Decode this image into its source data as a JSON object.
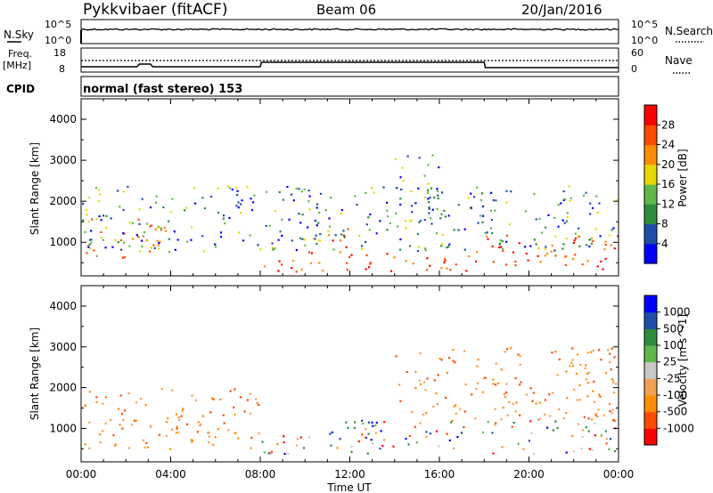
{
  "header": {
    "station": "Pykkvibaer (fitACF)",
    "beam": "Beam 06",
    "date": "20/Jan/2016"
  },
  "status_panels": {
    "nsky_label": "N.Sky",
    "nsky_ticks": [
      "10^5",
      "10^0"
    ],
    "nsearch_label": "N.Search",
    "nsearch_ticks": [
      "10^5",
      "10^0"
    ],
    "freq_label_1": "Freq.",
    "freq_label_2": "[MHz]",
    "freq_ticks": [
      "18",
      "8"
    ],
    "nave_label": "Nave",
    "nave_ticks": [
      "60",
      "0"
    ],
    "cpid_label": "CPID",
    "cpid_text": "normal (fast stereo) 153"
  },
  "chart_data": [
    {
      "type": "heatmap",
      "name": "power",
      "ylabel": "Slant Range [km]",
      "ylim": [
        180,
        4500
      ],
      "yticks": [
        "1000",
        "2000",
        "3000",
        "4000"
      ],
      "xlim_hours": [
        0,
        24
      ],
      "colorbar_label": "Power [dB]",
      "colorbar_ticks": [
        "28",
        "24",
        "20",
        "16",
        "12",
        "8",
        "4"
      ],
      "colors": [
        "#0000ff",
        "#1f4ea8",
        "#2c8c3c",
        "#5fb84a",
        "#e8d800",
        "#ff8c00",
        "#ff4a00",
        "#ff0000"
      ],
      "echo_regions": [
        {
          "x": [
            0,
            4.3
          ],
          "y": [
            600,
            1600
          ],
          "level": "high"
        },
        {
          "x": [
            3,
            4.3
          ],
          "y": [
            900,
            1500
          ],
          "level": "very-high"
        },
        {
          "x": [
            8,
            18
          ],
          "y": [
            300,
            800
          ],
          "level": "very-high"
        },
        {
          "x": [
            11,
            12.5
          ],
          "y": [
            900,
            1400
          ],
          "level": "very-high"
        },
        {
          "x": [
            18,
            24
          ],
          "y": [
            300,
            1200
          ],
          "level": "very-high"
        },
        {
          "x": [
            0,
            24
          ],
          "y": [
            800,
            2400
          ],
          "level": "low"
        },
        {
          "x": [
            14,
            16
          ],
          "y": [
            1500,
            3200
          ],
          "level": "low"
        }
      ]
    },
    {
      "type": "heatmap",
      "name": "velocity",
      "ylabel": "Slant Range [km]",
      "ylim": [
        180,
        4500
      ],
      "yticks": [
        "1000",
        "2000",
        "3000",
        "4000"
      ],
      "xlim_hours": [
        0,
        24
      ],
      "xticks": [
        "00:00",
        "04:00",
        "08:00",
        "12:00",
        "16:00",
        "20:00",
        "00:00"
      ],
      "xlabel": "Time UT",
      "colorbar_label": "Velocity [m s^-1]",
      "colorbar_ticks": [
        "1000",
        "500",
        "100",
        "25",
        "-25",
        "-100",
        "-500",
        "-1000"
      ],
      "colors": [
        "#ff0000",
        "#ff4a00",
        "#ff8c00",
        "#f0a050",
        "#c8c8c8",
        "#5fb84a",
        "#2c8c3c",
        "#1f4ea8",
        "#0000ff"
      ],
      "echo_regions": [
        {
          "x": [
            0,
            8
          ],
          "y": [
            500,
            2000
          ],
          "level": "negative"
        },
        {
          "x": [
            8,
            12
          ],
          "y": [
            350,
            900
          ],
          "level": "mixed"
        },
        {
          "x": [
            11,
            13
          ],
          "y": [
            700,
            1300
          ],
          "level": "positive"
        },
        {
          "x": [
            12,
            24
          ],
          "y": [
            400,
            1200
          ],
          "level": "mixed"
        },
        {
          "x": [
            14,
            24
          ],
          "y": [
            1200,
            3000
          ],
          "level": "negative"
        }
      ]
    }
  ]
}
